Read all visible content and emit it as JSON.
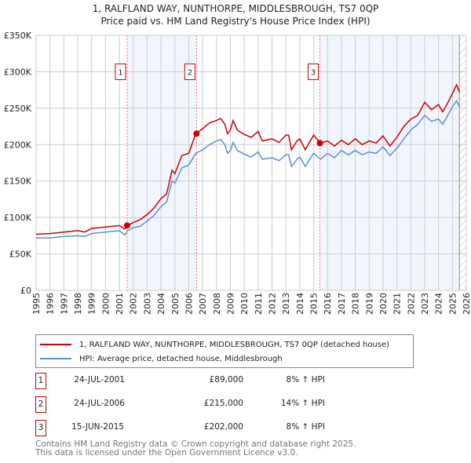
{
  "title": "1, RALFLAND WAY, NUNTHORPE, MIDDLESBROUGH, TS7 0QP",
  "subtitle": "Price paid vs. HM Land Registry's House Price Index (HPI)",
  "chart_data": {
    "type": "line",
    "ylim": [
      0,
      350000
    ],
    "xlim": [
      1995,
      2026
    ],
    "yticks": [
      {
        "v": 0,
        "label": "£0"
      },
      {
        "v": 50000,
        "label": "£50K"
      },
      {
        "v": 100000,
        "label": "£100K"
      },
      {
        "v": 150000,
        "label": "£150K"
      },
      {
        "v": 200000,
        "label": "£200K"
      },
      {
        "v": 250000,
        "label": "£250K"
      },
      {
        "v": 300000,
        "label": "£300K"
      },
      {
        "v": 350000,
        "label": "£350K"
      }
    ],
    "xticks": [
      "1995",
      "1996",
      "1997",
      "1998",
      "1999",
      "2000",
      "2001",
      "2002",
      "2003",
      "2004",
      "2005",
      "2006",
      "2007",
      "2008",
      "2009",
      "2010",
      "2011",
      "2012",
      "2013",
      "2014",
      "2015",
      "2016",
      "2017",
      "2018",
      "2019",
      "2020",
      "2021",
      "2022",
      "2023",
      "2024",
      "2025",
      "2026"
    ],
    "shaded_ranges": [
      [
        2001.56,
        2006.56
      ],
      [
        2015.45,
        2025.5
      ]
    ],
    "forecast_hatch_from": 2025.5,
    "x": [
      1995,
      1996,
      1997,
      1998,
      1998.5,
      1999,
      2000,
      2001,
      2001.4,
      2001.6,
      2002,
      2002.5,
      2003,
      2003.5,
      2004,
      2004.4,
      2004.8,
      2005,
      2005.5,
      2006,
      2006.5,
      2007,
      2007.5,
      2008,
      2008.3,
      2008.6,
      2008.8,
      2009,
      2009.2,
      2009.5,
      2010,
      2010.5,
      2011,
      2011.3,
      2012,
      2012.5,
      2013,
      2013.2,
      2013.4,
      2013.8,
      2014,
      2014.4,
      2015,
      2015.5,
      2016,
      2016.5,
      2017,
      2017.5,
      2018,
      2018.5,
      2019,
      2019.5,
      2020,
      2020.5,
      2021,
      2021.5,
      2022,
      2022.5,
      2023,
      2023.5,
      2024,
      2024.3,
      2024.6,
      2025,
      2025.3,
      2025.5
    ],
    "series": [
      {
        "name": "1, RALFLAND WAY, NUNTHORPE, MIDDLESBROUGH, TS7 0QP (detached house)",
        "color": "#cc0000",
        "values": [
          77,
          78,
          80,
          82,
          80,
          85,
          87,
          89,
          84,
          89,
          93,
          97,
          104,
          113,
          126,
          132,
          165,
          160,
          185,
          188,
          215,
          222,
          230,
          233,
          236,
          228,
          215,
          220,
          233,
          220,
          214,
          210,
          218,
          205,
          208,
          203,
          213,
          213,
          193,
          205,
          208,
          193,
          213,
          202,
          205,
          198,
          206,
          200,
          208,
          200,
          205,
          202,
          212,
          198,
          210,
          225,
          235,
          240,
          258,
          248,
          255,
          245,
          255,
          270,
          282,
          272
        ]
      },
      {
        "name": "HPI: Average price, detached house, Middlesbrough",
        "color": "#5b8fd0",
        "values": [
          72,
          72,
          74,
          75,
          74,
          78,
          80,
          82,
          76,
          82,
          86,
          88,
          95,
          103,
          115,
          121,
          150,
          147,
          168,
          172,
          188,
          193,
          200,
          205,
          207,
          200,
          188,
          192,
          203,
          192,
          187,
          183,
          190,
          180,
          182,
          178,
          186,
          186,
          170,
          180,
          183,
          170,
          188,
          180,
          188,
          182,
          192,
          186,
          192,
          186,
          190,
          188,
          197,
          185,
          195,
          208,
          220,
          228,
          240,
          232,
          235,
          228,
          238,
          252,
          260,
          252
        ]
      }
    ],
    "value_unit": "thousand GBP",
    "sales": [
      {
        "num": "1",
        "x": 2001.56,
        "price": 89000,
        "date": "24-JUL-2001",
        "price_label": "£89,000",
        "hpi": "8% ↑ HPI"
      },
      {
        "num": "2",
        "x": 2006.56,
        "price": 215000,
        "date": "24-JUL-2006",
        "price_label": "£215,000",
        "hpi": "14% ↑ HPI"
      },
      {
        "num": "3",
        "x": 2015.45,
        "price": 202000,
        "date": "15-JUN-2015",
        "price_label": "£202,000",
        "hpi": "8% ↑ HPI"
      }
    ]
  },
  "legend": {
    "red": "1, RALFLAND WAY, NUNTHORPE, MIDDLESBROUGH, TS7 0QP (detached house)",
    "blue": "HPI: Average price, detached house, Middlesbrough"
  },
  "footer": {
    "line1": "Contains HM Land Registry data © Crown copyright and database right 2025.",
    "line2": "This data is licensed under the Open Government Licence v3.0."
  }
}
